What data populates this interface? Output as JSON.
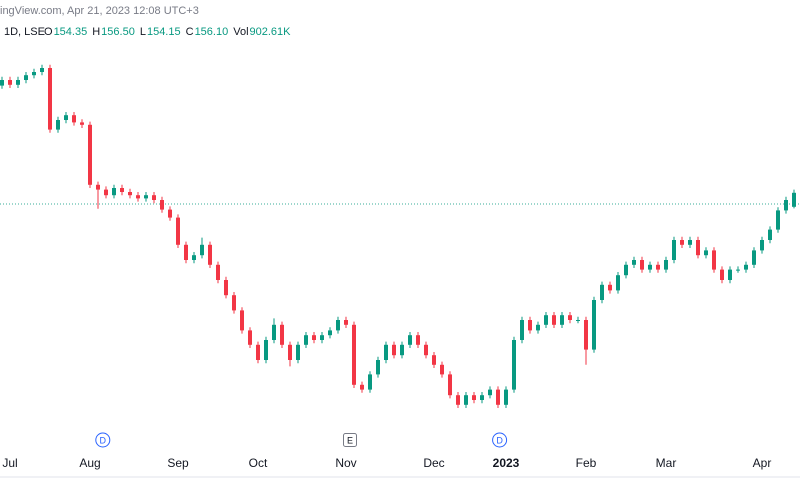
{
  "chart_data": {
    "type": "candlestick",
    "source": "ingView.com, Apr 21, 2023 12:08 UTC+3",
    "interval": "1D, LSE",
    "legend": [
      {
        "label": "O",
        "value": "154.35"
      },
      {
        "label": "H",
        "value": "156.50"
      },
      {
        "label": "L",
        "value": "154.15"
      },
      {
        "label": "C",
        "value": "156.10"
      },
      {
        "label": "Vol",
        "value": "902.61K"
      }
    ],
    "up_color": "#089981",
    "down_color": "#f23645",
    "open": [
      169.5,
      170.2,
      169.6,
      170.2,
      170.8,
      171.2,
      171.7,
      164.0,
      165.2,
      165.8,
      164.9,
      164.6,
      157.1,
      156.5,
      155.8,
      156.7,
      156.2,
      155.8,
      155.4,
      155.8,
      155.2,
      154.0,
      153.0,
      149.6,
      147.7,
      148.3,
      149.6,
      147.1,
      145.2,
      143.3,
      141.4,
      138.9,
      137.1,
      135.2,
      137.7,
      139.6,
      137.1,
      135.2,
      137.1,
      138.3,
      137.7,
      138.3,
      138.9,
      140.2,
      139.6,
      132.1,
      131.5,
      133.4,
      135.2,
      137.1,
      135.8,
      137.1,
      138.3,
      137.1,
      135.8,
      134.6,
      133.4,
      130.8,
      129.6,
      130.8,
      130.2,
      130.8,
      131.5,
      129.6,
      131.5,
      137.7,
      140.2,
      138.9,
      139.6,
      140.8,
      139.6,
      140.8,
      140.2,
      140.2,
      136.5,
      142.7,
      144.6,
      143.9,
      145.8,
      147.1,
      147.7,
      146.5,
      147.1,
      146.5,
      147.7,
      150.2,
      149.6,
      150.2,
      148.3,
      148.9,
      146.5,
      145.2,
      146.5,
      146.5,
      147.1,
      148.9,
      150.2,
      151.5,
      153.9,
      154.35
    ],
    "high": [
      170.6,
      170.6,
      170.6,
      171.2,
      171.6,
      172.1,
      172.1,
      165.6,
      166.2,
      166.2,
      165.3,
      165.0,
      157.5,
      156.9,
      157.1,
      157.1,
      156.6,
      156.2,
      156.2,
      156.2,
      155.6,
      154.4,
      153.4,
      150.0,
      148.7,
      150.5,
      150.0,
      147.5,
      145.6,
      143.7,
      141.8,
      139.3,
      137.5,
      138.1,
      140.4,
      140.0,
      137.5,
      137.5,
      138.7,
      138.7,
      138.7,
      139.3,
      140.6,
      140.6,
      140.0,
      132.5,
      133.8,
      135.6,
      137.5,
      137.5,
      137.5,
      138.7,
      138.7,
      137.5,
      136.2,
      135.0,
      133.8,
      131.2,
      131.2,
      131.2,
      131.2,
      131.9,
      131.9,
      131.9,
      138.1,
      140.6,
      140.6,
      140.0,
      141.2,
      141.2,
      141.2,
      141.2,
      140.6,
      140.6,
      143.1,
      145.0,
      145.0,
      146.2,
      147.5,
      148.1,
      148.1,
      147.5,
      147.5,
      148.1,
      150.6,
      150.6,
      150.6,
      150.6,
      149.3,
      149.3,
      146.9,
      146.9,
      146.9,
      147.5,
      149.3,
      150.6,
      151.9,
      154.3,
      155.6,
      156.5
    ],
    "low": [
      169.1,
      169.2,
      169.2,
      169.8,
      170.4,
      170.8,
      163.6,
      163.6,
      164.8,
      164.5,
      164.2,
      156.7,
      154.1,
      155.4,
      155.4,
      155.8,
      155.4,
      155.0,
      155.0,
      154.8,
      153.6,
      152.6,
      149.2,
      147.3,
      147.3,
      147.9,
      146.7,
      144.8,
      142.9,
      141.0,
      138.5,
      136.7,
      134.8,
      134.8,
      137.3,
      136.7,
      134.4,
      134.8,
      136.7,
      137.3,
      137.3,
      137.9,
      138.5,
      139.2,
      131.7,
      131.1,
      131.1,
      133.0,
      134.8,
      135.4,
      135.4,
      136.7,
      136.7,
      135.4,
      134.2,
      133.0,
      130.4,
      129.2,
      129.2,
      129.8,
      129.8,
      130.4,
      129.2,
      129.2,
      131.1,
      137.3,
      138.5,
      138.5,
      139.2,
      139.2,
      139.2,
      139.8,
      139.8,
      134.6,
      136.1,
      142.3,
      143.5,
      143.5,
      145.4,
      146.7,
      146.1,
      146.1,
      146.1,
      146.1,
      147.3,
      149.2,
      149.2,
      147.9,
      147.9,
      146.1,
      144.8,
      144.8,
      146.1,
      146.1,
      146.7,
      148.5,
      149.8,
      151.1,
      153.5,
      154.15
    ],
    "close": [
      170.2,
      169.6,
      170.2,
      170.8,
      171.2,
      171.7,
      164.0,
      165.2,
      165.8,
      164.9,
      164.6,
      157.1,
      156.5,
      155.8,
      156.7,
      156.2,
      155.8,
      155.4,
      155.8,
      155.2,
      154.0,
      153.0,
      149.6,
      147.7,
      148.3,
      149.6,
      147.1,
      145.2,
      143.3,
      141.4,
      138.9,
      137.1,
      135.2,
      137.7,
      139.6,
      137.1,
      135.2,
      137.1,
      138.3,
      137.7,
      138.3,
      138.9,
      140.2,
      139.6,
      132.1,
      131.5,
      133.4,
      135.2,
      137.1,
      135.8,
      137.1,
      138.3,
      137.1,
      135.8,
      134.6,
      133.4,
      130.8,
      129.6,
      130.8,
      130.2,
      130.8,
      131.5,
      129.6,
      131.5,
      137.7,
      140.2,
      138.9,
      139.6,
      140.8,
      139.6,
      140.8,
      140.2,
      140.2,
      136.5,
      142.7,
      144.6,
      143.9,
      145.8,
      147.1,
      147.7,
      146.5,
      147.1,
      146.5,
      147.7,
      150.2,
      149.6,
      150.2,
      148.3,
      148.9,
      146.5,
      145.2,
      146.5,
      146.5,
      147.1,
      148.9,
      150.2,
      151.5,
      153.9,
      155.2,
      156.1
    ],
    "price_line": 154.7,
    "ylim": [
      122.7,
      177.7
    ],
    "xlim": [
      -0.25,
      99.75
    ],
    "xticks": [
      {
        "value": 1,
        "label": "Jul"
      },
      {
        "value": 11,
        "label": "Aug"
      },
      {
        "value": 22,
        "label": "Sep"
      },
      {
        "value": 32,
        "label": "Oct"
      },
      {
        "value": 43,
        "label": "Nov"
      },
      {
        "value": 54,
        "label": "Dec"
      },
      {
        "value": 63,
        "label": "2023",
        "bold": true
      },
      {
        "value": 73,
        "label": "Feb"
      },
      {
        "value": 83,
        "label": "Mar"
      },
      {
        "value": 95,
        "label": "Apr"
      }
    ],
    "events": [
      {
        "value": 12.6,
        "label": "D",
        "kind": "dividend"
      },
      {
        "value": 43.5,
        "label": "E",
        "kind": "earnings"
      },
      {
        "value": 62.2,
        "label": "D",
        "kind": "dividend"
      }
    ]
  }
}
